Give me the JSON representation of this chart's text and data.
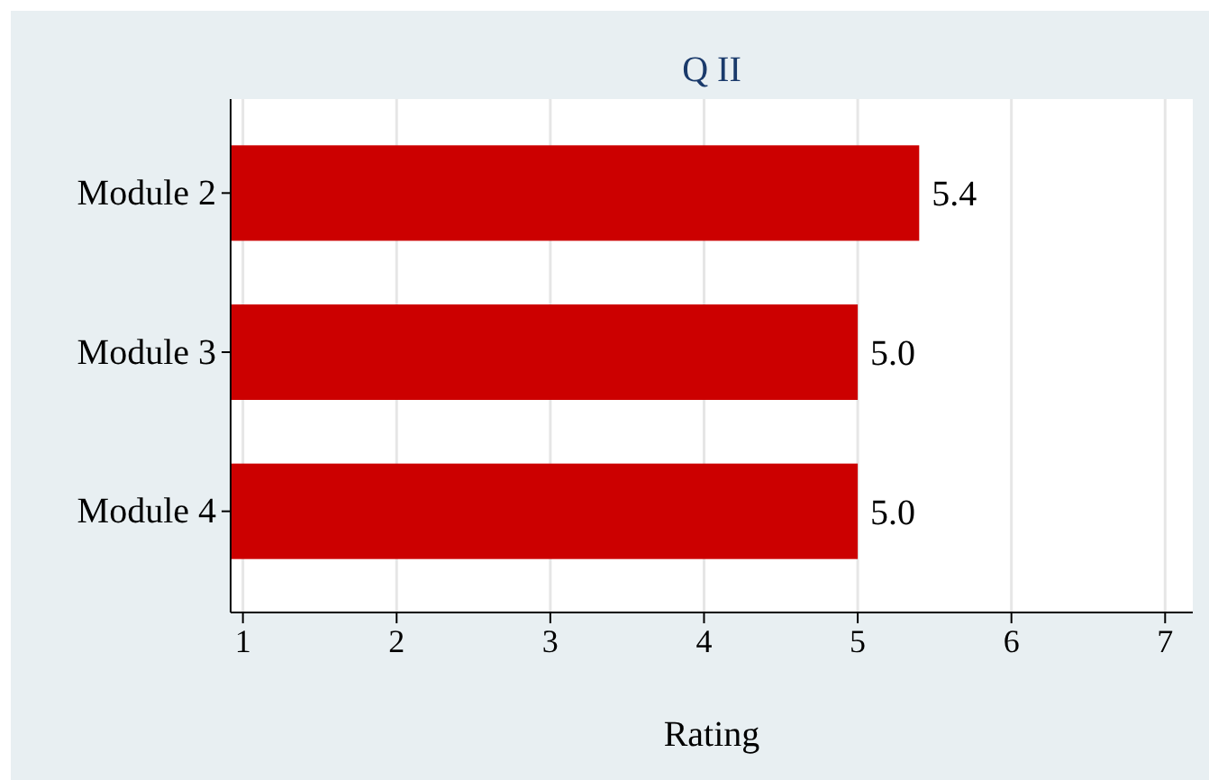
{
  "chart_data": {
    "type": "bar",
    "orientation": "horizontal",
    "title": "Q II",
    "xlabel": "Rating",
    "categories": [
      "Module 2",
      "Module 3",
      "Module 4"
    ],
    "values": [
      5.4,
      5.0,
      5.0
    ],
    "value_labels": [
      "5.4",
      "5.0",
      "5.0"
    ],
    "color": "#cc0000",
    "xlim": [
      0.92,
      7.18
    ],
    "xticks": [
      1,
      2,
      3,
      4,
      5,
      6,
      7
    ],
    "grid": "x"
  }
}
